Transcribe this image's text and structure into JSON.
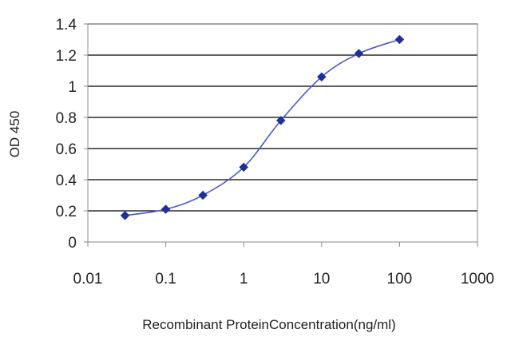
{
  "chart_data": {
    "type": "line",
    "title": "",
    "xlabel": "Recombinant ProteinConcentration(ng/ml)",
    "ylabel": "OD 450",
    "x_scale": "log",
    "xlim": [
      0.01,
      1000
    ],
    "ylim": [
      0,
      1.4
    ],
    "x_ticks": [
      "0.01",
      "0.1",
      "1",
      "10",
      "100",
      "1000"
    ],
    "x_tick_values": [
      0.01,
      0.1,
      1,
      10,
      100,
      1000
    ],
    "y_ticks": [
      "0",
      "0.2",
      "0.4",
      "0.6",
      "0.8",
      "1",
      "1.2",
      "1.4"
    ],
    "y_tick_values": [
      0,
      0.2,
      0.4,
      0.6,
      0.8,
      1.0,
      1.2,
      1.4
    ],
    "grid": "horizontal",
    "legend": "none",
    "series": [
      {
        "x": [
          0.03,
          0.1,
          0.3,
          1,
          3,
          10,
          30,
          100
        ],
        "values": [
          0.17,
          0.21,
          0.3,
          0.48,
          0.78,
          1.06,
          1.21,
          1.3
        ],
        "color": "#1f2f9a",
        "marker": "diamond"
      }
    ],
    "colors": {
      "line": "#4a5ad0",
      "marker": "#1f2f9a",
      "grid": "#000000",
      "axis": "#888888"
    }
  }
}
